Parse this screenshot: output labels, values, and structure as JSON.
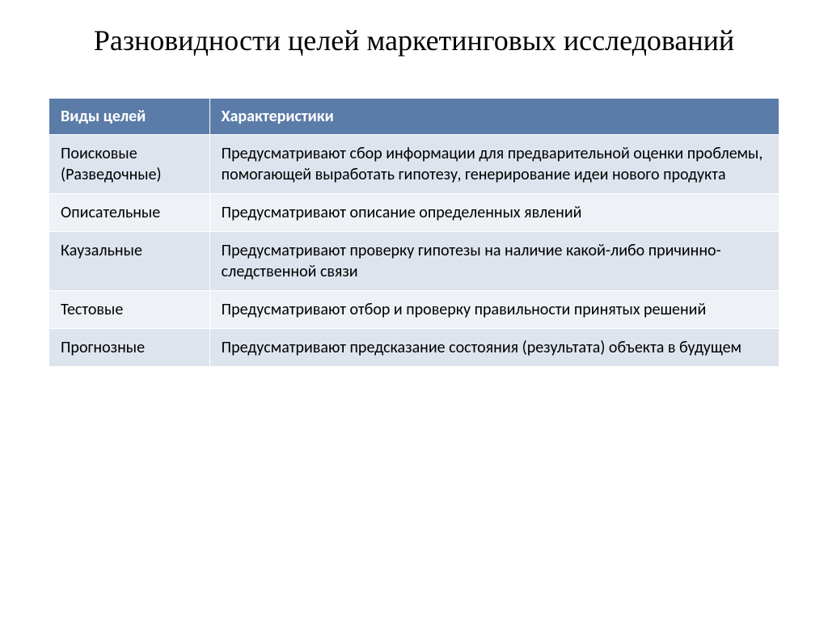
{
  "title": "Разновидности целей маркетинговых исследований",
  "table": {
    "type": "table",
    "header_bg": "#5b7ca8",
    "header_fg": "#ffffff",
    "row_odd_bg": "#dde4ee",
    "row_even_bg": "#eef2f7",
    "text_color": "#000000",
    "font_size": 20,
    "columns": [
      {
        "label": "Виды целей",
        "width": "22%"
      },
      {
        "label": "Характеристики",
        "width": "78%"
      }
    ],
    "rows": [
      {
        "type": "Поисковые (Разведочные)",
        "characteristic": "Предусматривают сбор информации для предварительной оценки проблемы, помогающей выработать гипотезу, генерирование идеи нового продукта"
      },
      {
        "type": "Описательные",
        "characteristic": "Предусматривают описание определенных явлений"
      },
      {
        "type": "Каузальные",
        "characteristic": "Предусматривают проверку гипотезы на наличие какой-либо причинно-следственной связи"
      },
      {
        "type": "Тестовые",
        "characteristic": "Предусматривают отбор и проверку правильности принятых решений"
      },
      {
        "type": "Прогнозные",
        "characteristic": "Предусматривают предсказание состояния (результата) объекта в будущем"
      }
    ]
  }
}
